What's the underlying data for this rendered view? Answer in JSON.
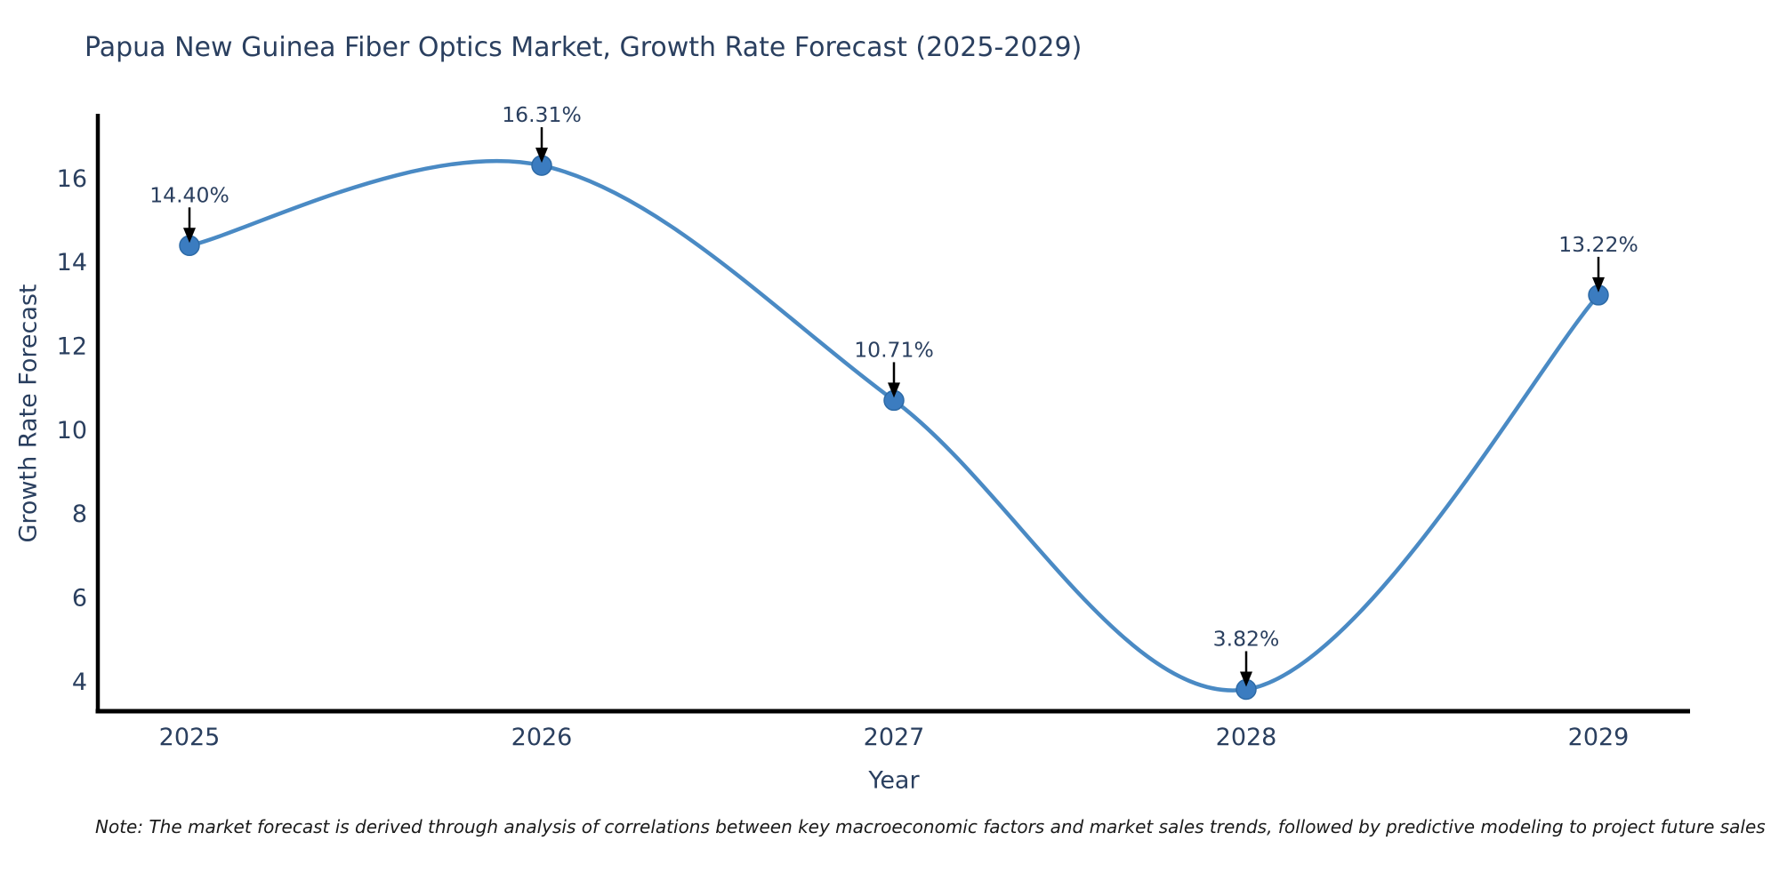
{
  "chart_data": {
    "type": "line",
    "title": "Papua New Guinea Fiber Optics Market, Growth Rate Forecast (2025-2029)",
    "xlabel": "Year",
    "ylabel": "Growth Rate Forecast",
    "x": [
      2025,
      2026,
      2027,
      2028,
      2029
    ],
    "series": [
      {
        "name": "Growth Rate Forecast",
        "values": [
          14.4,
          16.31,
          10.71,
          3.82,
          13.22
        ]
      }
    ],
    "point_labels": [
      "14.40%",
      "16.31%",
      "10.71%",
      "3.82%",
      "13.22%"
    ],
    "yticks": [
      4,
      6,
      8,
      10,
      12,
      14,
      16
    ],
    "xticks": [
      "2025",
      "2026",
      "2027",
      "2028",
      "2029"
    ],
    "ylim": [
      3.3,
      17.5
    ],
    "xlim": [
      2024.74,
      2029.26
    ],
    "line_shape": "spline",
    "grid": false,
    "legend_position": "none",
    "markers": true,
    "colors": {
      "line": "#4a8ac4",
      "marker": "#3b7cc0",
      "marker_edge": "#2d6aa6",
      "annotation_text": "#2a3f5f",
      "arrow": "#000000",
      "axis": "#000000",
      "tick_text": "#2a3f5f",
      "title_text": "#2a3f5f"
    }
  },
  "note": {
    "text": "Note: The market forecast is derived through analysis of correlations between key macroeconomic factors and market sales trends, followed by predictive modeling to project future sales"
  }
}
